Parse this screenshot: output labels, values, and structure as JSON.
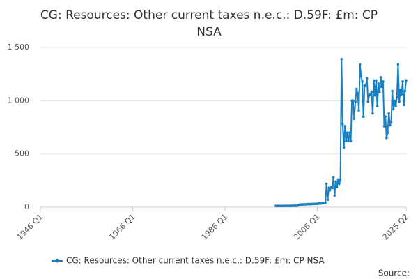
{
  "chart_data": {
    "type": "line",
    "title": "CG: Resources: Other current taxes n.e.c.: D.59F: £m: CP NSA",
    "source": "Source:",
    "xlim": [
      "1946 Q1",
      "2025 Q2"
    ],
    "xticks": [
      "1946 Q1",
      "1966 Q1",
      "1986 Q1",
      "2006 Q1",
      "2025 Q2"
    ],
    "ylim": [
      0,
      1500
    ],
    "yticks": [
      0,
      500,
      {
        "value": 1000,
        "label": "1 000"
      },
      {
        "value": 1500,
        "label": "1 500"
      }
    ],
    "grid": true,
    "x": [
      "1997 Q1",
      "1997 Q2",
      "1997 Q3",
      "1997 Q4",
      "1998 Q1",
      "1998 Q2",
      "1998 Q3",
      "1998 Q4",
      "1999 Q1",
      "1999 Q2",
      "1999 Q3",
      "1999 Q4",
      "2000 Q1",
      "2000 Q2",
      "2000 Q3",
      "2000 Q4",
      "2001 Q1",
      "2001 Q2",
      "2001 Q3",
      "2001 Q4",
      "2002 Q1",
      "2002 Q2",
      "2002 Q3",
      "2002 Q4",
      "2003 Q1",
      "2003 Q2",
      "2003 Q3",
      "2003 Q4",
      "2004 Q1",
      "2004 Q2",
      "2004 Q3",
      "2004 Q4",
      "2005 Q1",
      "2005 Q2",
      "2005 Q3",
      "2005 Q4",
      "2006 Q1",
      "2006 Q2",
      "2006 Q3",
      "2006 Q4",
      "2007 Q1",
      "2007 Q2",
      "2007 Q3",
      "2007 Q4",
      "2008 Q1",
      "2008 Q2",
      "2008 Q3",
      "2008 Q4",
      "2009 Q1",
      "2009 Q2",
      "2009 Q3",
      "2009 Q4",
      "2010 Q1",
      "2010 Q2",
      "2010 Q3",
      "2010 Q4",
      "2011 Q1",
      "2011 Q2",
      "2011 Q3",
      "2011 Q4",
      "2012 Q1",
      "2012 Q2",
      "2012 Q3",
      "2012 Q4",
      "2013 Q1",
      "2013 Q2",
      "2013 Q3",
      "2013 Q4",
      "2014 Q1",
      "2014 Q2",
      "2014 Q3",
      "2014 Q4",
      "2015 Q1",
      "2015 Q2",
      "2015 Q3",
      "2015 Q4",
      "2016 Q1",
      "2016 Q2",
      "2016 Q3",
      "2016 Q4",
      "2017 Q1",
      "2017 Q2",
      "2017 Q3",
      "2017 Q4",
      "2018 Q1",
      "2018 Q2",
      "2018 Q3",
      "2018 Q4",
      "2019 Q1",
      "2019 Q2",
      "2019 Q3",
      "2019 Q4",
      "2020 Q1",
      "2020 Q2",
      "2020 Q3",
      "2020 Q4",
      "2021 Q1",
      "2021 Q2",
      "2021 Q3",
      "2021 Q4",
      "2022 Q1",
      "2022 Q2",
      "2022 Q3",
      "2022 Q4",
      "2023 Q1",
      "2023 Q2",
      "2023 Q3",
      "2023 Q4",
      "2024 Q1",
      "2024 Q2",
      "2024 Q3",
      "2024 Q4",
      "2025 Q1",
      "2025 Q2"
    ],
    "series": [
      {
        "name": "CG: Resources: Other current taxes n.e.c.: D.59F: £m: CP NSA",
        "color": "#1a7fc1",
        "values": [
          12,
          11,
          12,
          11,
          12,
          12,
          11,
          12,
          12,
          13,
          12,
          12,
          13,
          12,
          13,
          13,
          14,
          13,
          14,
          14,
          22,
          24,
          25,
          26,
          26,
          27,
          27,
          28,
          28,
          29,
          28,
          30,
          30,
          31,
          30,
          32,
          32,
          33,
          34,
          35,
          36,
          38,
          40,
          42,
          220,
          70,
          180,
          160,
          190,
          180,
          280,
          110,
          240,
          190,
          260,
          220,
          260,
          1390,
          780,
          560,
          760,
          620,
          700,
          620,
          700,
          620,
          1000,
          1000,
          830,
          990,
          1110,
          1070,
          910,
          1340,
          1230,
          1180,
          850,
          1140,
          1140,
          1210,
          990,
          1050,
          1060,
          1080,
          880,
          1190,
          1050,
          1190,
          950,
          1160,
          1080,
          1220,
          1130,
          1180,
          760,
          850,
          650,
          700,
          880,
          770,
          800,
          1090,
          920,
          1000,
          950,
          1030,
          1340,
          990,
          1100,
          1060,
          1180,
          960,
          1090,
          1190
        ]
      }
    ]
  }
}
